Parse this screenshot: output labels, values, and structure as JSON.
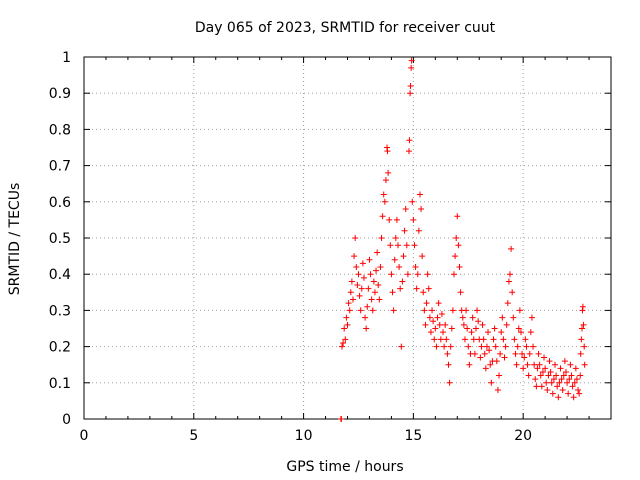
{
  "chart_data": {
    "type": "scatter",
    "title": "Day 065 of 2023, SRMTID for receiver cuut",
    "xlabel": "GPS time / hours",
    "ylabel": "SRMTID / TECUs",
    "xlim": [
      0,
      24
    ],
    "ylim": [
      0,
      1
    ],
    "xticks": [
      0,
      5,
      10,
      15,
      20
    ],
    "xtick_labels": [
      "0",
      "5",
      "10",
      "15",
      "20"
    ],
    "yticks": [
      0,
      0.1,
      0.2,
      0.3,
      0.4,
      0.5,
      0.6,
      0.7,
      0.8,
      0.9,
      1
    ],
    "ytick_labels": [
      "0",
      "0.1",
      "0.2",
      "0.3",
      "0.4",
      "0.5",
      "0.6",
      "0.7",
      "0.8",
      "0.9",
      "1"
    ],
    "grid": true,
    "marker": "+",
    "color": "#ff0000",
    "series": [
      {
        "name": "SRMTID",
        "points": [
          [
            11.7,
            0.0
          ],
          [
            11.72,
            0.0
          ],
          [
            11.75,
            0.2
          ],
          [
            11.8,
            0.21
          ],
          [
            11.85,
            0.25
          ],
          [
            11.9,
            0.22
          ],
          [
            11.95,
            0.28
          ],
          [
            12.0,
            0.26
          ],
          [
            12.05,
            0.32
          ],
          [
            12.1,
            0.3
          ],
          [
            12.15,
            0.35
          ],
          [
            12.2,
            0.38
          ],
          [
            12.25,
            0.33
          ],
          [
            12.3,
            0.45
          ],
          [
            12.35,
            0.5
          ],
          [
            12.4,
            0.42
          ],
          [
            12.45,
            0.37
          ],
          [
            12.5,
            0.4
          ],
          [
            12.55,
            0.34
          ],
          [
            12.6,
            0.3
          ],
          [
            12.65,
            0.36
          ],
          [
            12.7,
            0.43
          ],
          [
            12.75,
            0.39
          ],
          [
            12.8,
            0.28
          ],
          [
            12.85,
            0.25
          ],
          [
            12.9,
            0.31
          ],
          [
            12.95,
            0.36
          ],
          [
            13.0,
            0.44
          ],
          [
            13.05,
            0.4
          ],
          [
            13.1,
            0.33
          ],
          [
            13.15,
            0.3
          ],
          [
            13.2,
            0.38
          ],
          [
            13.25,
            0.35
          ],
          [
            13.3,
            0.41
          ],
          [
            13.35,
            0.46
          ],
          [
            13.4,
            0.37
          ],
          [
            13.45,
            0.33
          ],
          [
            13.5,
            0.42
          ],
          [
            13.55,
            0.5
          ],
          [
            13.6,
            0.56
          ],
          [
            13.65,
            0.62
          ],
          [
            13.7,
            0.6
          ],
          [
            13.75,
            0.66
          ],
          [
            13.8,
            0.75
          ],
          [
            13.82,
            0.74
          ],
          [
            13.85,
            0.68
          ],
          [
            13.9,
            0.55
          ],
          [
            13.95,
            0.48
          ],
          [
            14.0,
            0.4
          ],
          [
            14.05,
            0.35
          ],
          [
            14.1,
            0.3
          ],
          [
            14.15,
            0.44
          ],
          [
            14.2,
            0.5
          ],
          [
            14.25,
            0.55
          ],
          [
            14.3,
            0.48
          ],
          [
            14.35,
            0.42
          ],
          [
            14.4,
            0.36
          ],
          [
            14.45,
            0.2
          ],
          [
            14.5,
            0.38
          ],
          [
            14.55,
            0.45
          ],
          [
            14.6,
            0.52
          ],
          [
            14.65,
            0.58
          ],
          [
            14.7,
            0.48
          ],
          [
            14.75,
            0.4
          ],
          [
            14.8,
            0.74
          ],
          [
            14.82,
            0.77
          ],
          [
            14.85,
            0.9
          ],
          [
            14.87,
            0.92
          ],
          [
            14.9,
            0.97
          ],
          [
            14.92,
            0.99
          ],
          [
            14.95,
            0.6
          ],
          [
            15.0,
            0.55
          ],
          [
            15.05,
            0.48
          ],
          [
            15.1,
            0.42
          ],
          [
            15.15,
            0.36
          ],
          [
            15.2,
            0.4
          ],
          [
            15.25,
            0.52
          ],
          [
            15.3,
            0.62
          ],
          [
            15.35,
            0.58
          ],
          [
            15.4,
            0.45
          ],
          [
            15.45,
            0.35
          ],
          [
            15.5,
            0.3
          ],
          [
            15.55,
            0.26
          ],
          [
            15.6,
            0.32
          ],
          [
            15.65,
            0.4
          ],
          [
            15.7,
            0.36
          ],
          [
            15.75,
            0.28
          ],
          [
            15.8,
            0.24
          ],
          [
            15.85,
            0.3
          ],
          [
            15.9,
            0.27
          ],
          [
            15.95,
            0.22
          ],
          [
            16.0,
            0.25
          ],
          [
            16.05,
            0.2
          ],
          [
            16.1,
            0.28
          ],
          [
            16.15,
            0.32
          ],
          [
            16.2,
            0.26
          ],
          [
            16.25,
            0.22
          ],
          [
            16.3,
            0.29
          ],
          [
            16.35,
            0.24
          ],
          [
            16.4,
            0.2
          ],
          [
            16.45,
            0.26
          ],
          [
            16.5,
            0.22
          ],
          [
            16.55,
            0.18
          ],
          [
            16.6,
            0.15
          ],
          [
            16.65,
            0.1
          ],
          [
            16.7,
            0.2
          ],
          [
            16.75,
            0.25
          ],
          [
            16.8,
            0.3
          ],
          [
            16.85,
            0.4
          ],
          [
            16.9,
            0.45
          ],
          [
            16.95,
            0.5
          ],
          [
            17.0,
            0.56
          ],
          [
            17.05,
            0.48
          ],
          [
            17.1,
            0.42
          ],
          [
            17.15,
            0.35
          ],
          [
            17.2,
            0.3
          ],
          [
            17.25,
            0.28
          ],
          [
            17.3,
            0.26
          ],
          [
            17.35,
            0.22
          ],
          [
            17.4,
            0.3
          ],
          [
            17.45,
            0.25
          ],
          [
            17.5,
            0.2
          ],
          [
            17.55,
            0.15
          ],
          [
            17.6,
            0.18
          ],
          [
            17.65,
            0.24
          ],
          [
            17.7,
            0.28
          ],
          [
            17.75,
            0.22
          ],
          [
            17.8,
            0.18
          ],
          [
            17.85,
            0.25
          ],
          [
            17.9,
            0.3
          ],
          [
            17.95,
            0.27
          ],
          [
            18.0,
            0.22
          ],
          [
            18.05,
            0.17
          ],
          [
            18.1,
            0.2
          ],
          [
            18.15,
            0.26
          ],
          [
            18.2,
            0.22
          ],
          [
            18.25,
            0.18
          ],
          [
            18.3,
            0.14
          ],
          [
            18.35,
            0.2
          ],
          [
            18.4,
            0.24
          ],
          [
            18.45,
            0.19
          ],
          [
            18.5,
            0.15
          ],
          [
            18.55,
            0.1
          ],
          [
            18.6,
            0.16
          ],
          [
            18.65,
            0.22
          ],
          [
            18.7,
            0.25
          ],
          [
            18.75,
            0.2
          ],
          [
            18.8,
            0.16
          ],
          [
            18.85,
            0.08
          ],
          [
            18.9,
            0.12
          ],
          [
            18.95,
            0.18
          ],
          [
            19.0,
            0.24
          ],
          [
            19.05,
            0.28
          ],
          [
            19.1,
            0.22
          ],
          [
            19.15,
            0.17
          ],
          [
            19.2,
            0.2
          ],
          [
            19.25,
            0.26
          ],
          [
            19.3,
            0.32
          ],
          [
            19.35,
            0.38
          ],
          [
            19.4,
            0.4
          ],
          [
            19.45,
            0.47
          ],
          [
            19.5,
            0.35
          ],
          [
            19.55,
            0.28
          ],
          [
            19.6,
            0.22
          ],
          [
            19.65,
            0.18
          ],
          [
            19.7,
            0.15
          ],
          [
            19.75,
            0.2
          ],
          [
            19.8,
            0.25
          ],
          [
            19.85,
            0.3
          ],
          [
            19.9,
            0.24
          ],
          [
            19.95,
            0.18
          ],
          [
            20.0,
            0.14
          ],
          [
            20.05,
            0.17
          ],
          [
            20.1,
            0.22
          ],
          [
            20.15,
            0.2
          ],
          [
            20.2,
            0.15
          ],
          [
            20.25,
            0.12
          ],
          [
            20.3,
            0.18
          ],
          [
            20.35,
            0.24
          ],
          [
            20.4,
            0.28
          ],
          [
            20.45,
            0.2
          ],
          [
            20.5,
            0.15
          ],
          [
            20.55,
            0.11
          ],
          [
            20.6,
            0.09
          ],
          [
            20.65,
            0.14
          ],
          [
            20.7,
            0.18
          ],
          [
            20.75,
            0.15
          ],
          [
            20.8,
            0.12
          ],
          [
            20.85,
            0.09
          ],
          [
            20.9,
            0.13
          ],
          [
            20.95,
            0.17
          ],
          [
            21.0,
            0.14
          ],
          [
            21.05,
            0.1
          ],
          [
            21.1,
            0.08
          ],
          [
            21.15,
            0.12
          ],
          [
            21.2,
            0.16
          ],
          [
            21.25,
            0.13
          ],
          [
            21.3,
            0.1
          ],
          [
            21.35,
            0.07
          ],
          [
            21.4,
            0.11
          ],
          [
            21.45,
            0.15
          ],
          [
            21.5,
            0.12
          ],
          [
            21.55,
            0.09
          ],
          [
            21.6,
            0.06
          ],
          [
            21.65,
            0.1
          ],
          [
            21.7,
            0.14
          ],
          [
            21.75,
            0.11
          ],
          [
            21.8,
            0.08
          ],
          [
            21.85,
            0.12
          ],
          [
            21.9,
            0.16
          ],
          [
            21.95,
            0.13
          ],
          [
            22.0,
            0.1
          ],
          [
            22.05,
            0.07
          ],
          [
            22.1,
            0.11
          ],
          [
            22.15,
            0.15
          ],
          [
            22.2,
            0.12
          ],
          [
            22.25,
            0.09
          ],
          [
            22.3,
            0.06
          ],
          [
            22.35,
            0.1
          ],
          [
            22.4,
            0.14
          ],
          [
            22.45,
            0.11
          ],
          [
            22.5,
            0.08
          ],
          [
            22.55,
            0.07
          ],
          [
            22.6,
            0.12
          ],
          [
            22.62,
            0.18
          ],
          [
            22.65,
            0.22
          ],
          [
            22.68,
            0.25
          ],
          [
            22.7,
            0.3
          ],
          [
            22.72,
            0.31
          ],
          [
            22.75,
            0.26
          ],
          [
            22.78,
            0.2
          ],
          [
            22.8,
            0.15
          ]
        ]
      }
    ]
  }
}
